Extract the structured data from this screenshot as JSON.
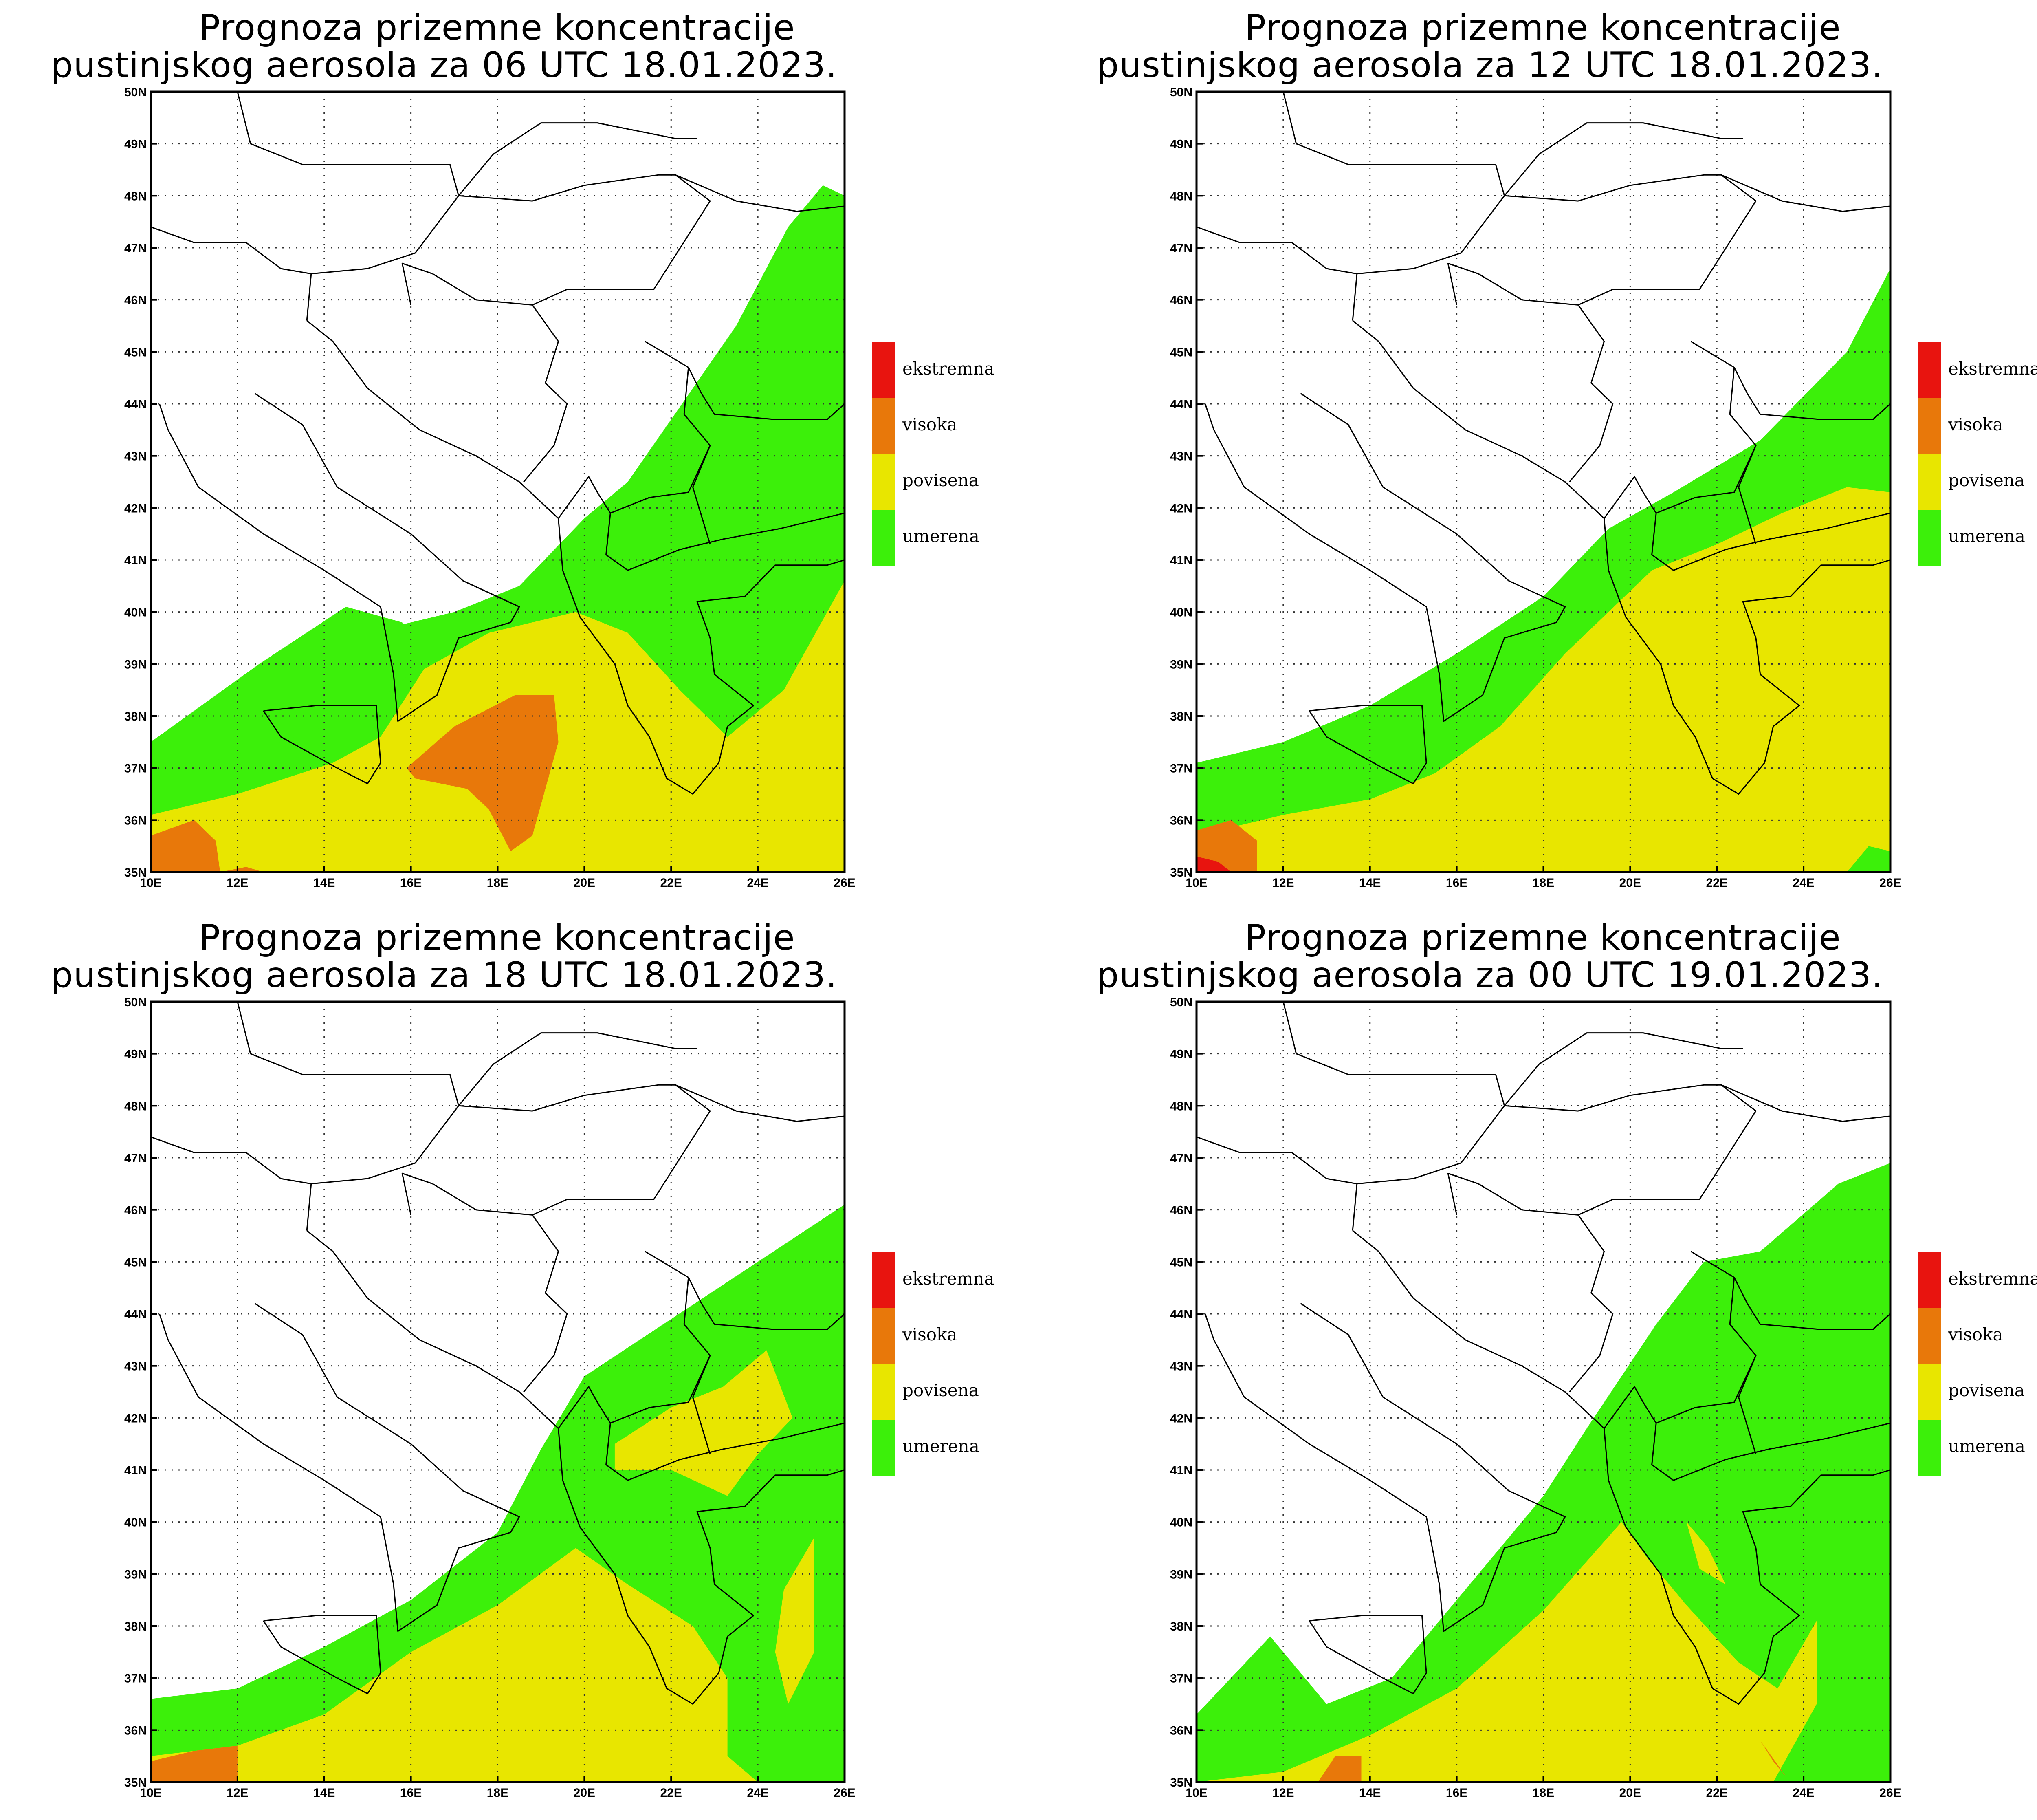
{
  "legend": {
    "items": [
      {
        "label": "ekstremna",
        "color": "#e8140f"
      },
      {
        "label": "visoka",
        "color": "#e8780a"
      },
      {
        "label": "povisena",
        "color": "#e8e600"
      },
      {
        "label": "umerena",
        "color": "#3cf00a"
      }
    ]
  },
  "axes": {
    "lon_ticks": [
      "10E",
      "12E",
      "14E",
      "16E",
      "18E",
      "20E",
      "22E",
      "24E",
      "26E"
    ],
    "lat_ticks": [
      "35N",
      "36N",
      "37N",
      "38N",
      "39N",
      "40N",
      "41N",
      "42N",
      "43N",
      "44N",
      "45N",
      "46N",
      "47N",
      "48N",
      "49N",
      "50N"
    ],
    "lon_range": [
      10,
      26
    ],
    "lat_range": [
      35,
      50
    ]
  },
  "panels": [
    {
      "title_line1": "Prognoza prizemne koncentracije",
      "title_line2": "pustinjskog aerosola za 06 UTC 18.01.2023."
    },
    {
      "title_line1": "Prognoza prizemne koncentracije",
      "title_line2": "pustinjskog aerosola za 12 UTC 18.01.2023."
    },
    {
      "title_line1": "Prognoza prizemne koncentracije",
      "title_line2": "pustinjskog aerosola za 18 UTC 18.01.2023."
    },
    {
      "title_line1": "Prognoza prizemne koncentracije",
      "title_line2": "pustinjskog aerosola za 00 UTC 19.01.2023."
    }
  ]
}
